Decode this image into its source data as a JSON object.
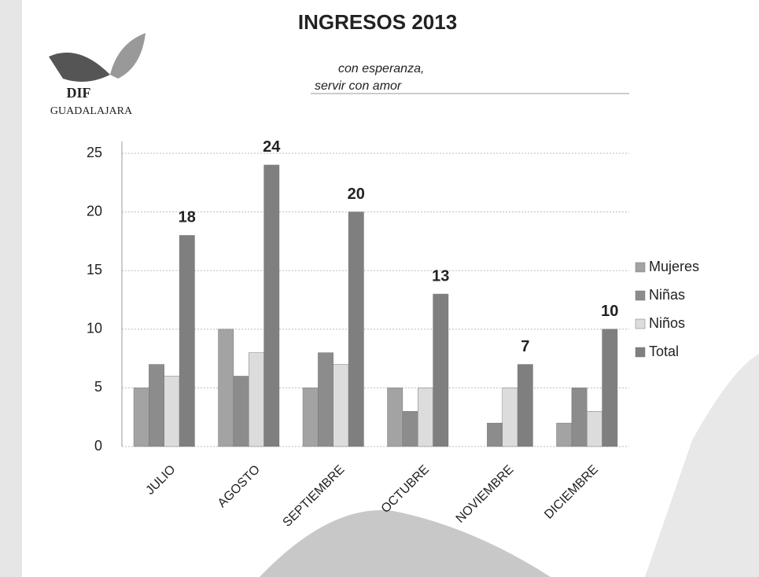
{
  "chart_data": {
    "type": "bar",
    "title": "INGRESOS 2013",
    "logo": {
      "name": "DIF",
      "city": "GUADALAJARA"
    },
    "slogan": [
      "con esperanza,",
      "servir con amor"
    ],
    "categories": [
      "JULIO",
      "AGOSTO",
      "SEPTIEMBRE",
      "OCTUBRE",
      "NOVIEMBRE",
      "DICIEMBRE"
    ],
    "series": [
      {
        "name": "Mujeres",
        "color": "#a3a3a3",
        "values": [
          5,
          10,
          5,
          5,
          0,
          2
        ]
      },
      {
        "name": "Niñas",
        "color": "#8c8c8c",
        "values": [
          7,
          6,
          8,
          3,
          2,
          5
        ]
      },
      {
        "name": "Niños",
        "color": "#dcdcdc",
        "values": [
          6,
          8,
          7,
          5,
          5,
          3
        ]
      },
      {
        "name": "Total",
        "color": "#7f7f7f",
        "values": [
          18,
          24,
          20,
          13,
          7,
          10
        ]
      }
    ],
    "data_labels_series": "Total",
    "ylim": [
      0,
      25
    ],
    "yticks": [
      0,
      5,
      10,
      15,
      20,
      25
    ],
    "grid": true,
    "legend": "right"
  }
}
